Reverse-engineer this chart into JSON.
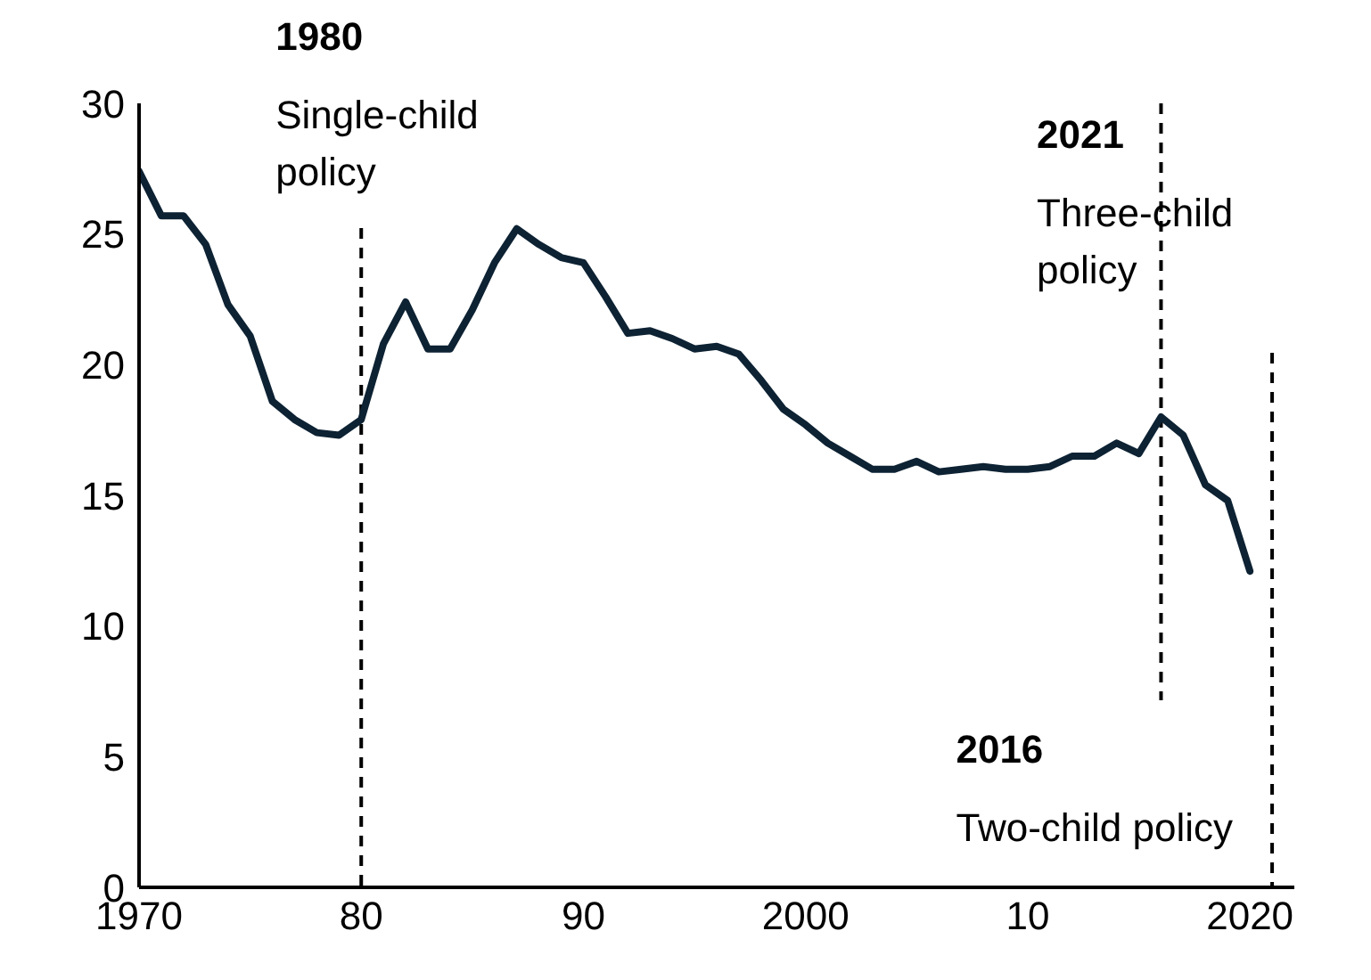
{
  "chart_data": {
    "type": "line",
    "x": [
      1970,
      1971,
      1972,
      1973,
      1974,
      1975,
      1976,
      1977,
      1978,
      1979,
      1980,
      1981,
      1982,
      1983,
      1984,
      1985,
      1986,
      1987,
      1988,
      1989,
      1990,
      1991,
      1992,
      1993,
      1994,
      1995,
      1996,
      1997,
      1998,
      1999,
      2000,
      2001,
      2002,
      2003,
      2004,
      2005,
      2006,
      2007,
      2008,
      2009,
      2010,
      2011,
      2012,
      2013,
      2014,
      2015,
      2016,
      2017,
      2018,
      2019,
      2020
    ],
    "values": [
      27.4,
      25.7,
      25.7,
      24.6,
      22.3,
      21.1,
      18.6,
      17.9,
      17.4,
      17.3,
      17.9,
      20.8,
      22.4,
      20.6,
      20.6,
      22.1,
      23.9,
      25.2,
      24.6,
      24.1,
      23.9,
      22.6,
      21.2,
      21.3,
      21.0,
      20.6,
      20.7,
      20.4,
      19.4,
      18.3,
      17.7,
      17.0,
      16.5,
      16.0,
      16.0,
      16.3,
      15.9,
      16.0,
      16.1,
      16.0,
      16.0,
      16.1,
      16.5,
      16.5,
      17.0,
      16.6,
      18.0,
      17.3,
      15.4,
      14.8,
      12.1
    ],
    "color": "#0d2233",
    "xlim": [
      1970,
      2022
    ],
    "xticks": [
      1970,
      {
        "value": 1980,
        "label": "80"
      },
      {
        "value": 1990,
        "label": "90"
      },
      2000,
      {
        "value": 2010,
        "label": "10"
      },
      2020
    ],
    "ylim": [
      0,
      30
    ],
    "yticks": [
      0,
      5,
      10,
      15,
      20,
      25,
      30
    ],
    "ref_lines": [
      {
        "axis": "x",
        "value": 1980,
        "label": "1980\nSingle-child policy",
        "color": "#000000",
        "line_style": "dashed"
      },
      {
        "axis": "x",
        "value": 2016,
        "label": "2016\nTwo-child policy",
        "color": "#000000",
        "line_style": "dashed"
      },
      {
        "axis": "x",
        "value": 2021,
        "label": "2021\nThree-child policy",
        "color": "#000000",
        "line_style": "dashed"
      }
    ],
    "grid": false
  }
}
